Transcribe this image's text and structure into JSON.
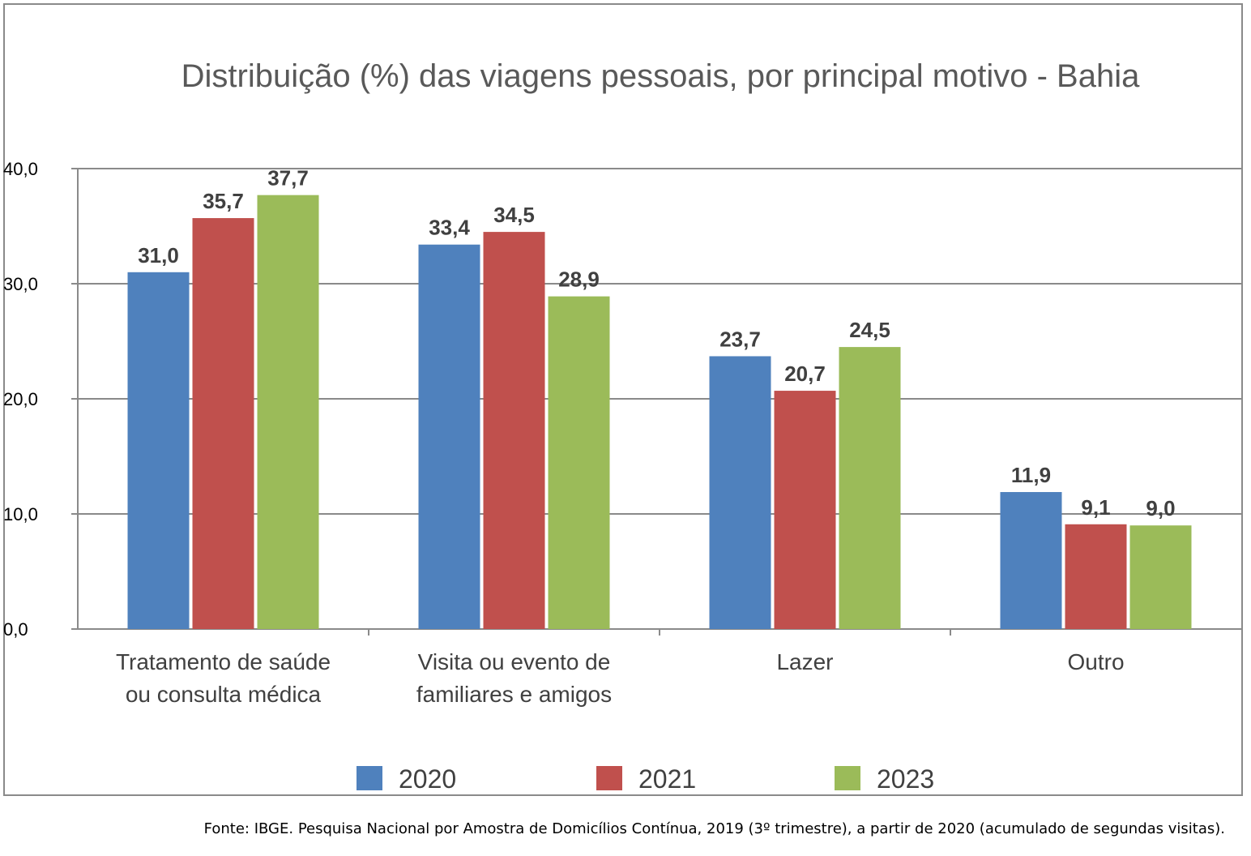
{
  "chart_data": {
    "type": "bar",
    "title": "Distribuição (%) das viagens pessoais, por principal motivo - Bahia",
    "xlabel": "",
    "ylabel": "",
    "ylim": [
      0,
      40
    ],
    "yticks": [
      0,
      10,
      20,
      30,
      40
    ],
    "ytick_labels": [
      "0,0",
      "10,0",
      "20,0",
      "30,0",
      "40,0"
    ],
    "grid": true,
    "legend_position": "bottom",
    "categories": [
      [
        "Tratamento de saúde",
        "ou consulta médica"
      ],
      [
        "Visita ou evento de",
        "familiares e amigos"
      ],
      [
        "Lazer"
      ],
      [
        "Outro"
      ]
    ],
    "series": [
      {
        "name": "2020",
        "color": "#4f81bd",
        "values": [
          31.0,
          33.4,
          23.7,
          11.9
        ],
        "labels": [
          "31,0",
          "33,4",
          "23,7",
          "11,9"
        ]
      },
      {
        "name": "2021",
        "color": "#c0504d",
        "values": [
          35.7,
          34.5,
          20.7,
          9.1
        ],
        "labels": [
          "35,7",
          "34,5",
          "20,7",
          "9,1"
        ]
      },
      {
        "name": "2023",
        "color": "#9bbb59",
        "values": [
          37.7,
          28.9,
          24.5,
          9.0
        ],
        "labels": [
          "37,7",
          "28,9",
          "24,5",
          "9,0"
        ]
      }
    ]
  },
  "source_note": "Fonte: IBGE. Pesquisa Nacional por Amostra de Domicílios Contínua, 2019 (3º trimestre), a partir de 2020 (acumulado de segundas visitas)."
}
